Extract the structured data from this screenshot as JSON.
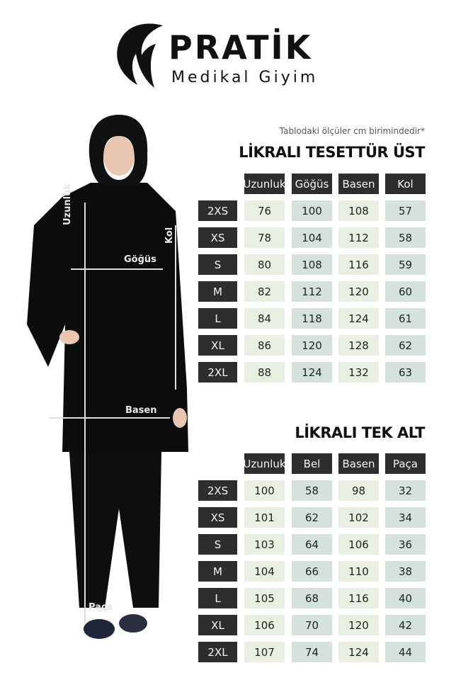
{
  "logo": {
    "brand": "PRATİK",
    "tagline": "Medikal Giyim"
  },
  "note": "Tablodaki ölçüler cm birimindedir*",
  "measure_labels": {
    "length": "Uzunluk",
    "sleeve": "Kol",
    "chest": "Göğüs",
    "hip": "Basen",
    "hem": "Paça"
  },
  "colors": {
    "header": "#2e2e2e",
    "cell_light": "#e9efe1",
    "cell_mint": "#d5e2dc"
  },
  "tables": [
    {
      "title": "LİKRALI TESETTÜR ÜST",
      "columns": [
        "Uzunluk",
        "Göğüs",
        "Basen",
        "Kol"
      ],
      "rows": [
        {
          "size": "2XS",
          "values": [
            "76",
            "100",
            "108",
            "57"
          ]
        },
        {
          "size": "XS",
          "values": [
            "78",
            "104",
            "112",
            "58"
          ]
        },
        {
          "size": "S",
          "values": [
            "80",
            "108",
            "116",
            "59"
          ]
        },
        {
          "size": "M",
          "values": [
            "82",
            "112",
            "120",
            "60"
          ]
        },
        {
          "size": "L",
          "values": [
            "84",
            "118",
            "124",
            "61"
          ]
        },
        {
          "size": "XL",
          "values": [
            "86",
            "120",
            "128",
            "62"
          ]
        },
        {
          "size": "2XL",
          "values": [
            "88",
            "124",
            "132",
            "63"
          ]
        }
      ]
    },
    {
      "title": "LİKRALI TEK ALT",
      "columns": [
        "Uzunluk",
        "Bel",
        "Basen",
        "Paça"
      ],
      "rows": [
        {
          "size": "2XS",
          "values": [
            "100",
            "58",
            "98",
            "32"
          ]
        },
        {
          "size": "XS",
          "values": [
            "101",
            "62",
            "102",
            "34"
          ]
        },
        {
          "size": "S",
          "values": [
            "103",
            "64",
            "106",
            "36"
          ]
        },
        {
          "size": "M",
          "values": [
            "104",
            "66",
            "110",
            "38"
          ]
        },
        {
          "size": "L",
          "values": [
            "105",
            "68",
            "116",
            "40"
          ]
        },
        {
          "size": "XL",
          "values": [
            "106",
            "70",
            "120",
            "42"
          ]
        },
        {
          "size": "2XL",
          "values": [
            "107",
            "74",
            "124",
            "44"
          ]
        }
      ]
    }
  ]
}
